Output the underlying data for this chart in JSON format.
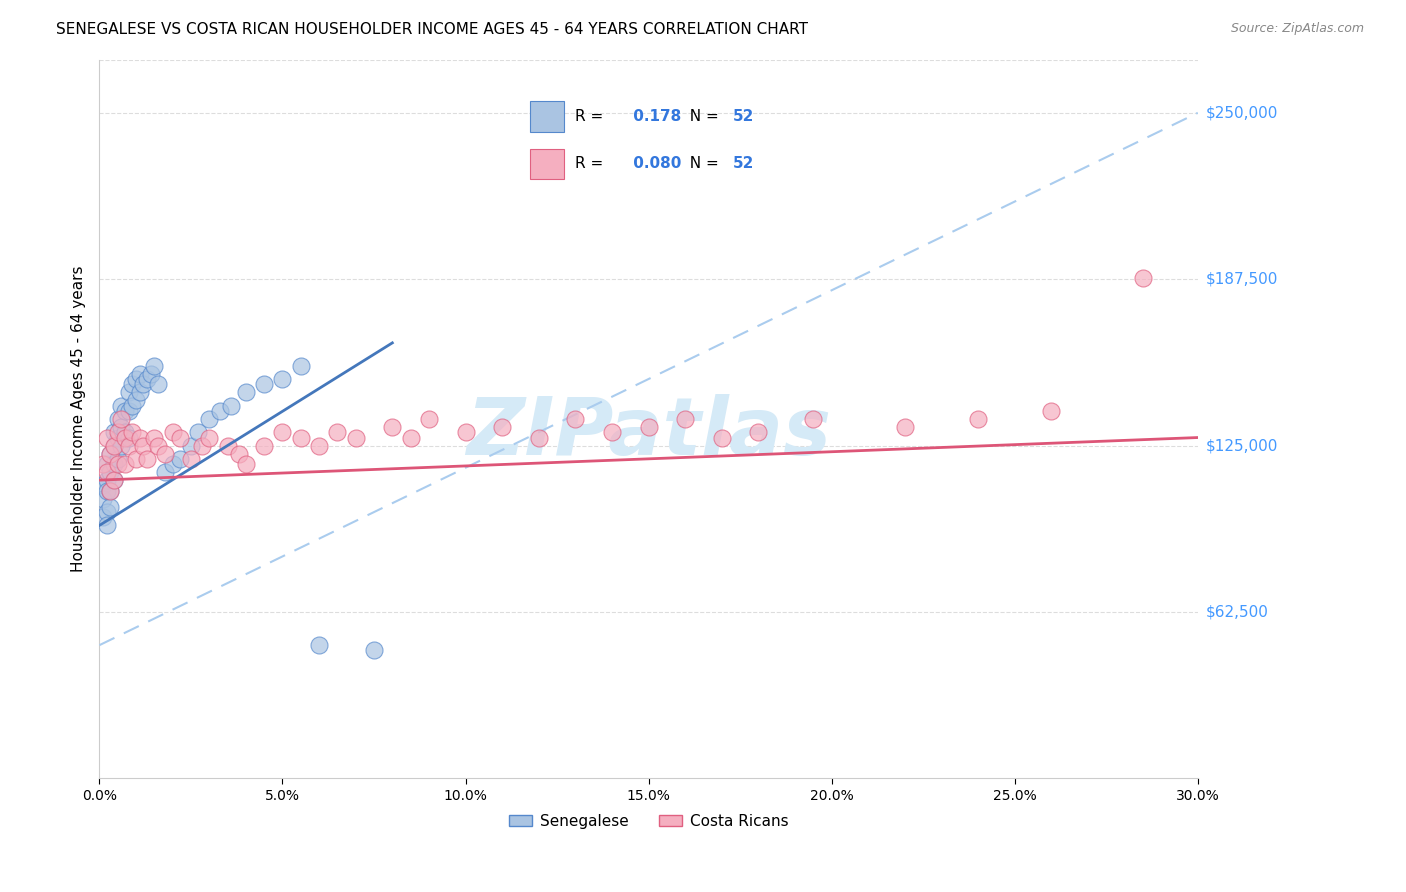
{
  "title": "SENEGALESE VS COSTA RICAN HOUSEHOLDER INCOME AGES 45 - 64 YEARS CORRELATION CHART",
  "source": "Source: ZipAtlas.com",
  "ylabel": "Householder Income Ages 45 - 64 years",
  "ytick_labels": [
    "$62,500",
    "$125,000",
    "$187,500",
    "$250,000"
  ],
  "ytick_values": [
    62500,
    125000,
    187500,
    250000
  ],
  "xlim": [
    0.0,
    0.3
  ],
  "ylim": [
    0,
    270000
  ],
  "R_senegalese": 0.178,
  "N_senegalese": 52,
  "R_costa_rican": 0.08,
  "N_costa_rican": 52,
  "senegalese_color": "#aac4e2",
  "costa_rican_color": "#f5afc0",
  "senegalese_edge": "#5588cc",
  "costa_rican_edge": "#e06080",
  "trend_senegalese_color": "#4477bb",
  "trend_costa_rican_color": "#dd5577",
  "dashed_line_color": "#aaccee",
  "watermark_color": "#d5eaf7",
  "legend_box_edge": "#cccccc",
  "grid_color": "#dddddd",
  "ytick_color": "#4499ff",
  "senegalese_x": [
    0.001,
    0.001,
    0.001,
    0.002,
    0.002,
    0.002,
    0.002,
    0.002,
    0.003,
    0.003,
    0.003,
    0.003,
    0.004,
    0.004,
    0.004,
    0.004,
    0.005,
    0.005,
    0.005,
    0.006,
    0.006,
    0.006,
    0.007,
    0.007,
    0.008,
    0.008,
    0.008,
    0.009,
    0.009,
    0.01,
    0.01,
    0.011,
    0.011,
    0.012,
    0.013,
    0.014,
    0.015,
    0.016,
    0.018,
    0.02,
    0.022,
    0.025,
    0.027,
    0.03,
    0.033,
    0.036,
    0.04,
    0.045,
    0.05,
    0.055,
    0.06,
    0.075
  ],
  "senegalese_y": [
    110000,
    105000,
    98000,
    118000,
    112000,
    108000,
    100000,
    95000,
    122000,
    115000,
    108000,
    102000,
    130000,
    125000,
    118000,
    112000,
    135000,
    128000,
    120000,
    140000,
    132000,
    125000,
    138000,
    130000,
    145000,
    138000,
    128000,
    148000,
    140000,
    150000,
    142000,
    152000,
    145000,
    148000,
    150000,
    152000,
    155000,
    148000,
    115000,
    118000,
    120000,
    125000,
    130000,
    135000,
    138000,
    140000,
    145000,
    148000,
    150000,
    155000,
    50000,
    48000
  ],
  "costa_rican_x": [
    0.001,
    0.002,
    0.002,
    0.003,
    0.003,
    0.004,
    0.004,
    0.005,
    0.005,
    0.006,
    0.007,
    0.007,
    0.008,
    0.009,
    0.01,
    0.011,
    0.012,
    0.013,
    0.015,
    0.016,
    0.018,
    0.02,
    0.022,
    0.025,
    0.028,
    0.03,
    0.035,
    0.038,
    0.04,
    0.045,
    0.05,
    0.055,
    0.06,
    0.065,
    0.07,
    0.08,
    0.085,
    0.09,
    0.1,
    0.11,
    0.12,
    0.13,
    0.14,
    0.15,
    0.16,
    0.17,
    0.18,
    0.195,
    0.22,
    0.24,
    0.26,
    0.285
  ],
  "costa_rican_y": [
    118000,
    128000,
    115000,
    122000,
    108000,
    125000,
    112000,
    130000,
    118000,
    135000,
    128000,
    118000,
    125000,
    130000,
    120000,
    128000,
    125000,
    120000,
    128000,
    125000,
    122000,
    130000,
    128000,
    120000,
    125000,
    128000,
    125000,
    122000,
    118000,
    125000,
    130000,
    128000,
    125000,
    130000,
    128000,
    132000,
    128000,
    135000,
    130000,
    132000,
    128000,
    135000,
    130000,
    132000,
    135000,
    128000,
    130000,
    135000,
    132000,
    135000,
    138000,
    188000
  ]
}
